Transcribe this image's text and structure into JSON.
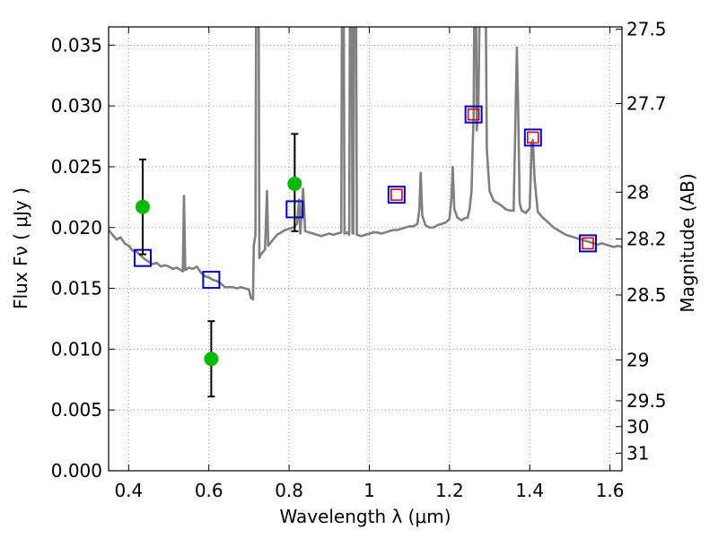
{
  "chart_data": {
    "type": "line",
    "title": "",
    "xlabel": "Wavelength  λ (μm)",
    "ylabel": "Flux  Fν  ( μJy )",
    "y2label": "Magnitude (AB)",
    "xlim": [
      0.35,
      1.63
    ],
    "ylim": [
      0.0,
      0.0365
    ],
    "grid": true,
    "x_ticks": [
      0.4,
      0.6,
      0.8,
      1.0,
      1.2,
      1.4,
      1.6
    ],
    "x_tick_labels": [
      "0.4",
      "0.6",
      "0.8",
      "1",
      "1.2",
      "1.4",
      "1.6"
    ],
    "y_ticks": [
      0.0,
      0.005,
      0.01,
      0.015,
      0.02,
      0.025,
      0.03,
      0.035
    ],
    "y_tick_labels": [
      "0.000",
      "0.005",
      "0.010",
      "0.015",
      "0.020",
      "0.025",
      "0.030",
      "0.035"
    ],
    "y2_ticks": [
      27.5,
      27.7,
      28,
      28.2,
      28.5,
      29,
      29.5,
      30,
      31
    ],
    "y2_tick_labels": [
      "27.5",
      "27.7",
      "28",
      "28.2",
      "28.5",
      "29",
      "29.5",
      "30",
      "31"
    ],
    "colors": {
      "model": "#808080",
      "observed": "#00bb00",
      "error": "#000000",
      "model_phot": "#0000cc",
      "model_phot_inner": "#dd0000",
      "grid": "#888888"
    },
    "series": [
      {
        "kind": "spectrum",
        "points": [
          [
            0.35,
            0.0198
          ],
          [
            0.36,
            0.0194
          ],
          [
            0.37,
            0.019
          ],
          [
            0.38,
            0.0192
          ],
          [
            0.39,
            0.0187
          ],
          [
            0.4,
            0.0185
          ],
          [
            0.41,
            0.0181
          ],
          [
            0.42,
            0.018
          ],
          [
            0.43,
            0.0177
          ],
          [
            0.44,
            0.0174
          ],
          [
            0.45,
            0.0172
          ],
          [
            0.46,
            0.017
          ],
          [
            0.47,
            0.0171
          ],
          [
            0.48,
            0.0168
          ],
          [
            0.49,
            0.0169
          ],
          [
            0.5,
            0.0168
          ],
          [
            0.51,
            0.0166
          ],
          [
            0.52,
            0.0167
          ],
          [
            0.53,
            0.0165
          ],
          [
            0.535,
            0.0164
          ],
          [
            0.538,
            0.0226
          ],
          [
            0.541,
            0.0165
          ],
          [
            0.55,
            0.0167
          ],
          [
            0.56,
            0.0166
          ],
          [
            0.57,
            0.0168
          ],
          [
            0.58,
            0.0163
          ],
          [
            0.59,
            0.016
          ],
          [
            0.6,
            0.0159
          ],
          [
            0.61,
            0.0157
          ],
          [
            0.62,
            0.0156
          ],
          [
            0.63,
            0.0154
          ],
          [
            0.64,
            0.0151
          ],
          [
            0.65,
            0.0151
          ],
          [
            0.66,
            0.0151
          ],
          [
            0.67,
            0.015
          ],
          [
            0.68,
            0.0151
          ],
          [
            0.69,
            0.015
          ],
          [
            0.7,
            0.0149
          ],
          [
            0.705,
            0.0142
          ],
          [
            0.71,
            0.0141
          ],
          [
            0.712,
            0.0185
          ],
          [
            0.716,
            0.0194
          ],
          [
            0.718,
            0.04
          ],
          [
            0.724,
            0.04
          ],
          [
            0.726,
            0.0175
          ],
          [
            0.73,
            0.0178
          ],
          [
            0.74,
            0.0182
          ],
          [
            0.745,
            0.023
          ],
          [
            0.748,
            0.0185
          ],
          [
            0.76,
            0.019
          ],
          [
            0.77,
            0.0194
          ],
          [
            0.78,
            0.0196
          ],
          [
            0.79,
            0.0198
          ],
          [
            0.8,
            0.0199
          ],
          [
            0.81,
            0.02
          ],
          [
            0.82,
            0.0203
          ],
          [
            0.825,
            0.0223
          ],
          [
            0.828,
            0.0195
          ],
          [
            0.835,
            0.0232
          ],
          [
            0.84,
            0.0197
          ],
          [
            0.85,
            0.0196
          ],
          [
            0.86,
            0.0195
          ],
          [
            0.87,
            0.0194
          ],
          [
            0.88,
            0.0193
          ],
          [
            0.89,
            0.0194
          ],
          [
            0.9,
            0.0195
          ],
          [
            0.91,
            0.0194
          ],
          [
            0.92,
            0.0195
          ],
          [
            0.93,
            0.0196
          ],
          [
            0.932,
            0.04
          ],
          [
            0.936,
            0.04
          ],
          [
            0.938,
            0.0195
          ],
          [
            0.945,
            0.0196
          ],
          [
            0.95,
            0.0194
          ],
          [
            0.952,
            0.04
          ],
          [
            0.956,
            0.04
          ],
          [
            0.958,
            0.0196
          ],
          [
            0.96,
            0.0195
          ],
          [
            0.962,
            0.04
          ],
          [
            0.967,
            0.04
          ],
          [
            0.969,
            0.0194
          ],
          [
            0.98,
            0.0193
          ],
          [
            0.99,
            0.0194
          ],
          [
            1.0,
            0.0195
          ],
          [
            1.01,
            0.0196
          ],
          [
            1.02,
            0.0196
          ],
          [
            1.03,
            0.0195
          ],
          [
            1.04,
            0.0196
          ],
          [
            1.05,
            0.0197
          ],
          [
            1.06,
            0.0198
          ],
          [
            1.07,
            0.0198
          ],
          [
            1.08,
            0.0199
          ],
          [
            1.09,
            0.02
          ],
          [
            1.1,
            0.0201
          ],
          [
            1.11,
            0.0201
          ],
          [
            1.12,
            0.0203
          ],
          [
            1.125,
            0.0215
          ],
          [
            1.128,
            0.0245
          ],
          [
            1.132,
            0.021
          ],
          [
            1.14,
            0.0202
          ],
          [
            1.15,
            0.02
          ],
          [
            1.16,
            0.02
          ],
          [
            1.17,
            0.0202
          ],
          [
            1.18,
            0.0203
          ],
          [
            1.19,
            0.0204
          ],
          [
            1.2,
            0.0207
          ],
          [
            1.205,
            0.0225
          ],
          [
            1.208,
            0.025
          ],
          [
            1.212,
            0.0215
          ],
          [
            1.22,
            0.0208
          ],
          [
            1.23,
            0.0206
          ],
          [
            1.24,
            0.0208
          ],
          [
            1.245,
            0.0208
          ],
          [
            1.25,
            0.0215
          ],
          [
            1.255,
            0.023
          ],
          [
            1.258,
            0.027
          ],
          [
            1.26,
            0.029
          ],
          [
            1.262,
            0.04
          ],
          [
            1.266,
            0.04
          ],
          [
            1.268,
            0.028
          ],
          [
            1.272,
            0.03
          ],
          [
            1.276,
            0.04
          ],
          [
            1.29,
            0.04
          ],
          [
            1.293,
            0.0265
          ],
          [
            1.296,
            0.025
          ],
          [
            1.3,
            0.023
          ],
          [
            1.31,
            0.0222
          ],
          [
            1.32,
            0.022
          ],
          [
            1.33,
            0.0218
          ],
          [
            1.34,
            0.0215
          ],
          [
            1.35,
            0.0214
          ],
          [
            1.36,
            0.0214
          ],
          [
            1.365,
            0.03
          ],
          [
            1.368,
            0.0348
          ],
          [
            1.371,
            0.03
          ],
          [
            1.375,
            0.022
          ],
          [
            1.38,
            0.0214
          ],
          [
            1.39,
            0.0212
          ],
          [
            1.4,
            0.0216
          ],
          [
            1.405,
            0.027
          ],
          [
            1.408,
            0.0272
          ],
          [
            1.412,
            0.024
          ],
          [
            1.42,
            0.0213
          ],
          [
            1.43,
            0.0209
          ],
          [
            1.44,
            0.0206
          ],
          [
            1.45,
            0.0203
          ],
          [
            1.46,
            0.02
          ],
          [
            1.47,
            0.0198
          ],
          [
            1.48,
            0.0196
          ],
          [
            1.49,
            0.0194
          ],
          [
            1.5,
            0.0193
          ],
          [
            1.51,
            0.0192
          ],
          [
            1.52,
            0.0191
          ],
          [
            1.53,
            0.019
          ],
          [
            1.54,
            0.0189
          ],
          [
            1.55,
            0.0188
          ],
          [
            1.56,
            0.0187
          ],
          [
            1.57,
            0.0186
          ],
          [
            1.58,
            0.0187
          ],
          [
            1.59,
            0.0186
          ],
          [
            1.6,
            0.0185
          ],
          [
            1.61,
            0.0184
          ],
          [
            1.62,
            0.0185
          ],
          [
            1.63,
            0.0184
          ]
        ]
      },
      {
        "kind": "observed",
        "points": [
          {
            "x": 0.435,
            "y": 0.0217,
            "ylo": 0.0178,
            "yhi": 0.0256
          },
          {
            "x": 0.606,
            "y": 0.0092,
            "ylo": 0.0061,
            "yhi": 0.0123
          },
          {
            "x": 0.814,
            "y": 0.0236,
            "ylo": 0.0197,
            "yhi": 0.0277
          }
        ]
      },
      {
        "kind": "model_photometry",
        "points": [
          {
            "x": 0.435,
            "y": 0.0175,
            "inner": false
          },
          {
            "x": 0.606,
            "y": 0.0157,
            "inner": false
          },
          {
            "x": 0.814,
            "y": 0.0215,
            "inner": false
          },
          {
            "x": 1.068,
            "y": 0.0227,
            "inner": true
          },
          {
            "x": 1.26,
            "y": 0.0293,
            "inner": true
          },
          {
            "x": 1.408,
            "y": 0.0274,
            "inner": true
          },
          {
            "x": 1.545,
            "y": 0.0187,
            "inner": true
          }
        ]
      }
    ]
  }
}
